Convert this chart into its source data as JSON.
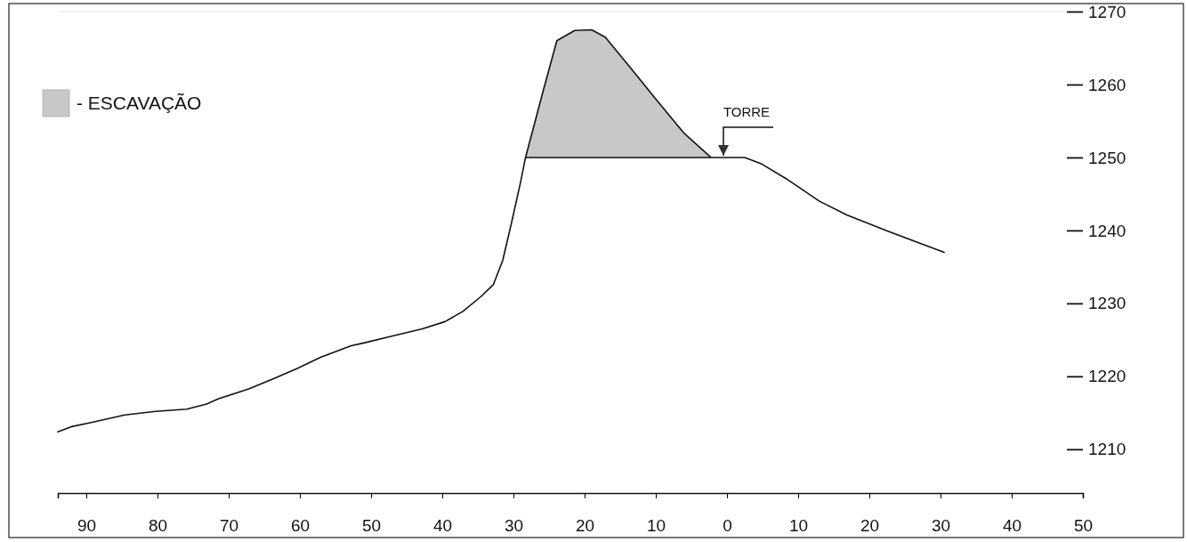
{
  "chart_data": {
    "type": "line",
    "xlim": [
      -94,
      50
    ],
    "xticks": [
      {
        "value": -90,
        "label": "90"
      },
      {
        "value": -80,
        "label": "80"
      },
      {
        "value": -70,
        "label": "70"
      },
      {
        "value": -60,
        "label": "60"
      },
      {
        "value": -50,
        "label": "50"
      },
      {
        "value": -40,
        "label": "40"
      },
      {
        "value": -30,
        "label": "30"
      },
      {
        "value": -20,
        "label": "20"
      },
      {
        "value": -10,
        "label": "10"
      },
      0,
      10,
      20,
      30,
      40,
      50
    ],
    "ylim": [
      1204,
      1270
    ],
    "yticks": [
      1210,
      1220,
      1230,
      1240,
      1250,
      1260,
      1270
    ],
    "legend": "top left",
    "annotations": [
      {
        "text": "TORRE",
        "x": -0.5,
        "y": 1250
      }
    ],
    "series": [
      {
        "color": "#111111",
        "x": [
          -94,
          -92.1,
          -89.6,
          -84.6,
          -80.3,
          -75.9,
          -73.1,
          -71.5,
          -67.1,
          -63.4,
          -60.3,
          -57.1,
          -52.8,
          -50.9,
          -47.1,
          -42.8,
          -39.6,
          -37.1,
          -34.6,
          -32.8,
          -31.5,
          -30.3,
          -29,
          -28.3,
          -2.25,
          2.5,
          4.9,
          8.3,
          13,
          16.9,
          22.6,
          30.5
        ],
        "values": [
          1212.4,
          1213.1,
          1213.6,
          1214.7,
          1215.2,
          1215.5,
          1216.2,
          1216.9,
          1218.3,
          1219.8,
          1221.1,
          1222.6,
          1224.2,
          1224.6,
          1225.5,
          1226.5,
          1227.5,
          1228.9,
          1230.9,
          1232.6,
          1235.9,
          1240.9,
          1246.6,
          1250,
          1250,
          1250,
          1249.1,
          1247.1,
          1244,
          1242.1,
          1239.9,
          1237
        ]
      },
      {
        "type": "area",
        "name": "- ESCAVAÇÃO",
        "color": "#c8c8c8",
        "x": [
          -28.3,
          -25.8,
          -23.9,
          -21.4,
          -19,
          -17.1,
          -13.8,
          -9.9,
          -6.1,
          -2.25
        ],
        "values": [
          1250,
          1259.2,
          1266,
          1267.4,
          1267.5,
          1266.5,
          1262.6,
          1257.9,
          1253.4,
          1250
        ]
      }
    ]
  }
}
